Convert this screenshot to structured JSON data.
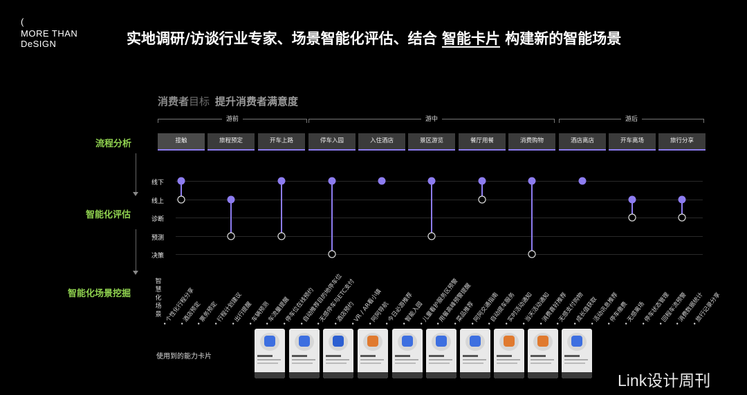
{
  "logo": {
    "paren": "(",
    "line1": "MORE THAN",
    "line2": "DeSIGN"
  },
  "headline": {
    "before": "实地调研/访谈行业专家、场景智能化评估、结合 ",
    "underlined": "智能卡片",
    "after": " 构建新的智能场景"
  },
  "goal": {
    "subject": "消费者",
    "word": "目标",
    "text": "提升消费者满意度"
  },
  "phases": [
    "游前",
    "游中",
    "游后"
  ],
  "stages": [
    "接触",
    "旅程预定",
    "开车上路",
    "停车入园",
    "入住酒店",
    "景区游览",
    "餐厅用餐",
    "消费购物",
    "酒店离店",
    "开车离场",
    "旅行分享"
  ],
  "sections": {
    "process": "流程分析",
    "evaluation": "智能化评估",
    "mining": "智能化场景挖掘"
  },
  "levels": [
    "线下",
    "线上",
    "诊断",
    "预测",
    "决策"
  ],
  "vertical_label": [
    "智",
    "慧",
    "化",
    "场",
    "景"
  ],
  "scenario_items": [
    "个性化行程分享",
    "酒店预定",
    "票务预定",
    "行程计划建议",
    "出行提醒",
    "车辆预测",
    "车流量提醒",
    "停车位在线预约",
    "自动推荐目的地停车位",
    "无感停车与ETC支付",
    "酒店预约",
    "VR / AR看小镇",
    "阿阿导航",
    "今日必游推荐",
    "智能入园",
    "儿童看护服务区预警",
    "用餐高峰预警提醒",
    "菜品推荐",
    "阿阿交通指南",
    "自动提车服务",
    "实时活动通知",
    "当天活动通知",
    "消费喜好推荐",
    "无感支付购物",
    "成长值获取",
    "活动讯息推荐",
    "停车缴费",
    "无感离场",
    "停车状态管理",
    "回程车流预警",
    "消费数据统计",
    "旅行记录分享"
  ],
  "evaluation_points": [
    {
      "stage": "接触",
      "top": "线下",
      "bottom": "线上"
    },
    {
      "stage": "旅程预定",
      "top": "线上",
      "bottom": "预测"
    },
    {
      "stage": "开车上路",
      "top": "线下",
      "bottom": "预测"
    },
    {
      "stage": "停车入园",
      "top": "线下",
      "bottom": "决策"
    },
    {
      "stage": "入住酒店",
      "top": "线下",
      "bottom": null
    },
    {
      "stage": "景区游览",
      "top": "线下",
      "bottom": "预测"
    },
    {
      "stage": "餐厅用餐",
      "top": "线下",
      "bottom": "线上"
    },
    {
      "stage": "消费购物",
      "top": "线下",
      "bottom": "决策"
    },
    {
      "stage": "酒店离店",
      "top": "线下",
      "bottom": null
    },
    {
      "stage": "开车离场",
      "top": "线上",
      "bottom": "诊断"
    },
    {
      "stage": "旅行分享",
      "top": "线上",
      "bottom": "诊断"
    }
  ],
  "cards_label": "使用到的能力卡片",
  "card_icon_colors": [
    "#3d6fe0",
    "#3d6fe0",
    "#2c5fd1",
    "#e07a2f",
    "#3d6fe0",
    "#3d6fe0",
    "#3d6fe0",
    "#e07a2f",
    "#e07a2f",
    "#3d6fe0"
  ],
  "colors": {
    "accent": "#8d7cf0",
    "green": "#8fd14f"
  },
  "watermark": "Link设计周刊"
}
